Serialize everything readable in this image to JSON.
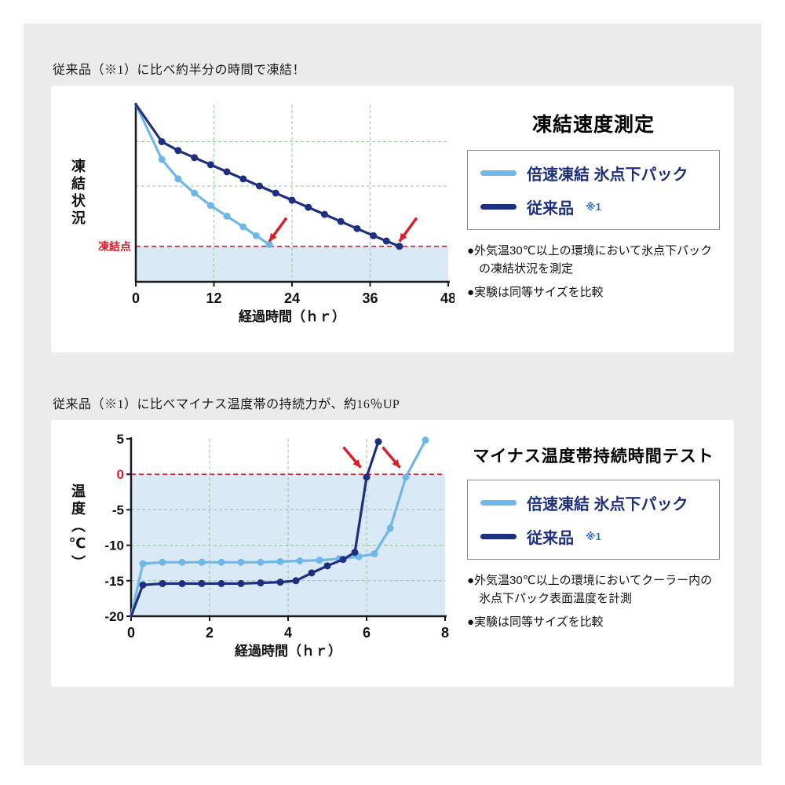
{
  "colors": {
    "canvas_bg": "#ebebeb",
    "panel_bg": "#ffffff",
    "light_series": "#6fb7e6",
    "dark_series": "#1d2f7e",
    "red": "#d7202c",
    "area_fill": "#d9e9f6",
    "grid": "#94c594",
    "axis": "#1a1a1a",
    "legend_text": "#1d2f7e",
    "legend_suffix": "#2e6fc0",
    "legend_border": "#8c8c8c"
  },
  "section1": {
    "header": "従来品（※1）に比べ約半分の時間で凍結！",
    "title": "凍結速度測定",
    "legend": [
      {
        "label": "倍速凍結 氷点下パック",
        "suffix": ""
      },
      {
        "label": "従来品",
        "suffix": "※1"
      }
    ],
    "notes": [
      "●外気温30℃以上の環境において氷点下パックの凍結状況を測定",
      "●実験は同等サイズを比較"
    ]
  },
  "section2": {
    "header": "従来品（※1）に比べマイナス温度帯の持続力が、約16％UP",
    "title": "マイナス温度帯持続時間テスト",
    "legend": [
      {
        "label": "倍速凍結 氷点下パック",
        "suffix": ""
      },
      {
        "label": "従来品",
        "suffix": "※1"
      }
    ],
    "notes": [
      "●外気温30℃以上の環境においてクーラー内の氷点下パック表面温度を計測",
      "●実験は同等サイズを比較"
    ]
  },
  "chart_data": [
    {
      "type": "line",
      "title": "凍結速度測定",
      "xlabel": "経過時間（ｈｒ）",
      "ylabel": "凍結状況",
      "xlim": [
        0,
        48
      ],
      "ylim": [
        0,
        100
      ],
      "xticks": [
        0,
        12,
        24,
        36,
        48
      ],
      "yticks": [],
      "y_units": "arbitrary freezing-progress scale: 100 = start, 20 = freezing point line",
      "refline": {
        "y": 20,
        "label": "凍結点"
      },
      "grid_x": [
        12,
        24,
        36
      ],
      "grid_y": [
        54,
        79
      ],
      "legend_position": "right",
      "series": [
        {
          "name": "倍速凍結 氷点下パック",
          "color_key": "light_series",
          "points": [
            [
              0,
              100
            ],
            [
              4,
              69
            ],
            [
              6.5,
              58
            ],
            [
              9,
              50
            ],
            [
              11.5,
              43
            ],
            [
              14,
              37
            ],
            [
              16.5,
              31
            ],
            [
              18.5,
              26
            ],
            [
              20.5,
              21
            ]
          ]
        },
        {
          "name": "従来品 ※1",
          "color_key": "dark_series",
          "points": [
            [
              0,
              100
            ],
            [
              4,
              79
            ],
            [
              6.5,
              74
            ],
            [
              9,
              70
            ],
            [
              11.5,
              66
            ],
            [
              14,
              62
            ],
            [
              16.5,
              58
            ],
            [
              19,
              54
            ],
            [
              21.5,
              50
            ],
            [
              24,
              46
            ],
            [
              26.5,
              42
            ],
            [
              29,
              38
            ],
            [
              31.5,
              34
            ],
            [
              34,
              30
            ],
            [
              36.5,
              26
            ],
            [
              38.5,
              23
            ],
            [
              40.5,
              20
            ]
          ]
        }
      ],
      "arrows": [
        {
          "x": 20.5,
          "y": 21,
          "dx": 22,
          "dy": -30
        },
        {
          "x": 40.5,
          "y": 21,
          "dx": 22,
          "dy": -30
        }
      ]
    },
    {
      "type": "line",
      "title": "マイナス温度帯持続時間テスト",
      "xlabel": "経過時間（ｈｒ）",
      "ylabel": "温度（℃）",
      "xlim": [
        0,
        8
      ],
      "ylim": [
        -20,
        5
      ],
      "xticks": [
        0,
        2,
        4,
        6,
        8
      ],
      "yticks": [
        5,
        0,
        -5,
        -10,
        -15,
        -20
      ],
      "refline": {
        "y": 0,
        "label": ""
      },
      "grid_x": [
        2,
        4,
        6
      ],
      "grid_y": [
        -5,
        -10,
        -15
      ],
      "legend_position": "right",
      "series": [
        {
          "name": "倍速凍結 氷点下パック",
          "color_key": "light_series",
          "points": [
            [
              0,
              -20
            ],
            [
              0.3,
              -12.6
            ],
            [
              0.8,
              -12.4
            ],
            [
              1.3,
              -12.4
            ],
            [
              1.8,
              -12.4
            ],
            [
              2.3,
              -12.4
            ],
            [
              2.8,
              -12.4
            ],
            [
              3.3,
              -12.4
            ],
            [
              3.8,
              -12.3
            ],
            [
              4.3,
              -12.2
            ],
            [
              4.8,
              -12.1
            ],
            [
              5.3,
              -11.9
            ],
            [
              5.8,
              -11.6
            ],
            [
              6.2,
              -11.2
            ],
            [
              6.6,
              -7.6
            ],
            [
              7,
              -0.4
            ],
            [
              7.5,
              4.8
            ]
          ]
        },
        {
          "name": "従来品 ※1",
          "color_key": "dark_series",
          "points": [
            [
              0,
              -20
            ],
            [
              0.3,
              -15.6
            ],
            [
              0.8,
              -15.4
            ],
            [
              1.3,
              -15.4
            ],
            [
              1.8,
              -15.4
            ],
            [
              2.3,
              -15.4
            ],
            [
              2.8,
              -15.4
            ],
            [
              3.3,
              -15.3
            ],
            [
              3.8,
              -15.2
            ],
            [
              4.2,
              -15
            ],
            [
              4.6,
              -13.9
            ],
            [
              5,
              -12.9
            ],
            [
              5.4,
              -12
            ],
            [
              5.7,
              -11
            ],
            [
              6,
              -0.4
            ],
            [
              6.3,
              4.6
            ]
          ]
        }
      ],
      "arrows": [
        {
          "x": 5.85,
          "y": 0.5,
          "dx": -22,
          "dy": -26
        },
        {
          "x": 6.85,
          "y": 0.5,
          "dx": -22,
          "dy": -26
        }
      ]
    }
  ]
}
